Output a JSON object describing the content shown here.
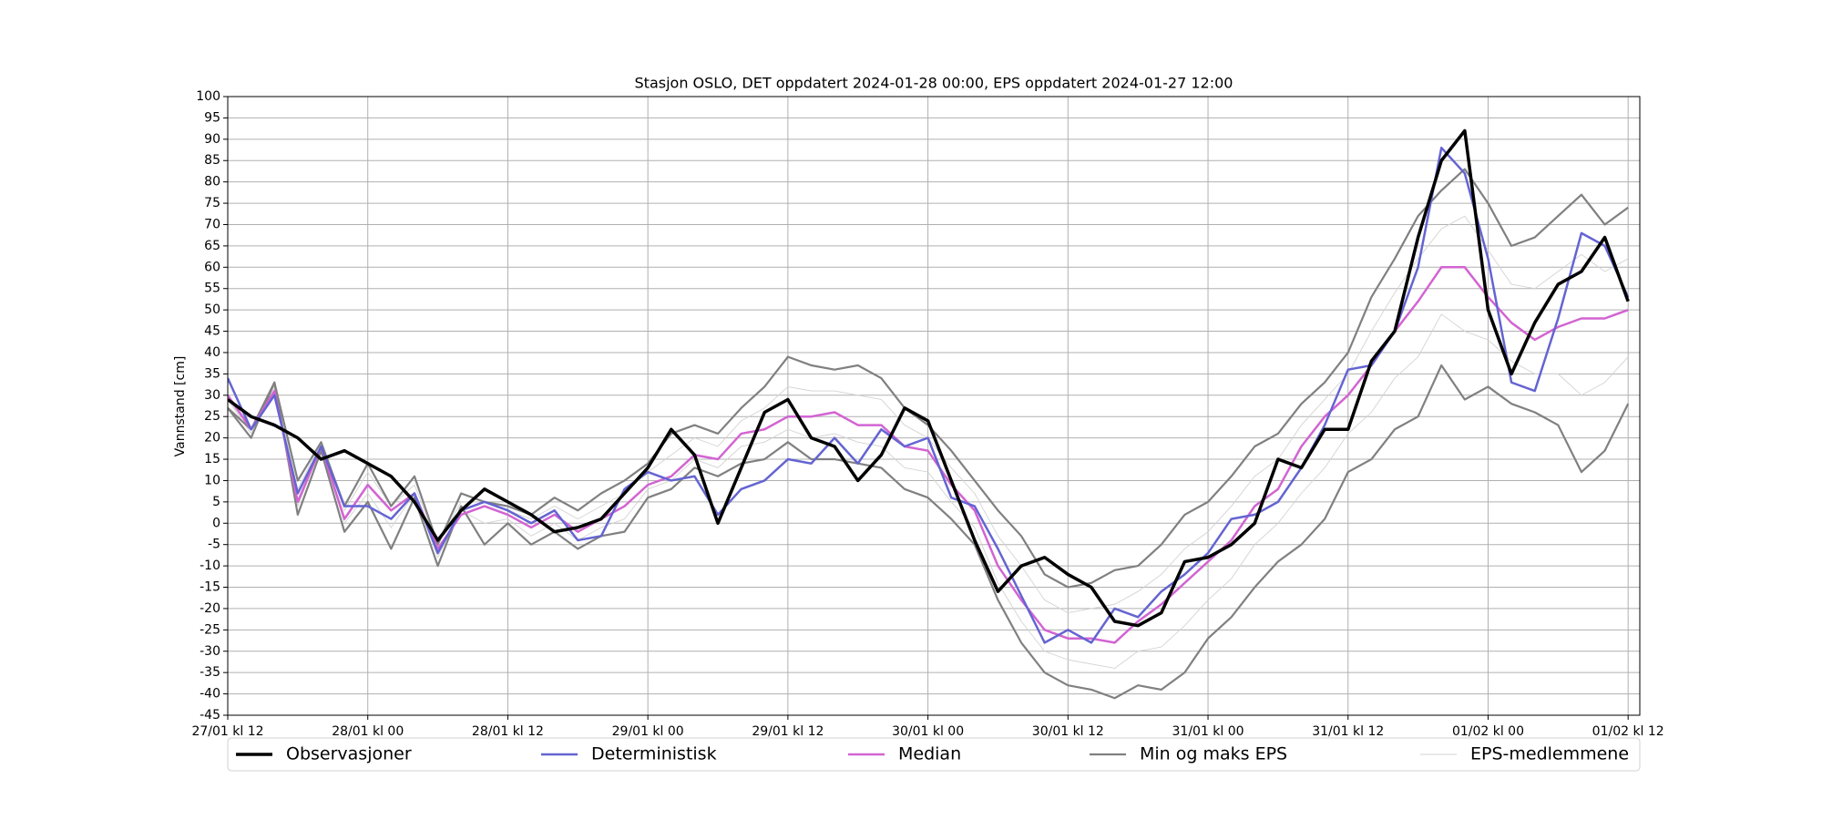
{
  "chart_data": {
    "type": "line",
    "title": "Stasjon OSLO, DET oppdatert 2024-01-28 00:00, EPS oppdatert 2024-01-27 12:00",
    "y_label": "Vannstand [cm]",
    "x": [
      0,
      2,
      4,
      6,
      8,
      10,
      12,
      14,
      16,
      18,
      20,
      22,
      24,
      26,
      28,
      30,
      32,
      34,
      36,
      38,
      40,
      42,
      44,
      46,
      48,
      50,
      52,
      54,
      56,
      58,
      60,
      62,
      64,
      66,
      68,
      70,
      72,
      74,
      76,
      78,
      80,
      82,
      84,
      86,
      88,
      90,
      92,
      94,
      96,
      98,
      100,
      102,
      104,
      106,
      108,
      110,
      112,
      114,
      116,
      118,
      120
    ],
    "xlim": [
      0,
      121
    ],
    "xticks": [
      {
        "value": 0,
        "label": "27/01 kl 12"
      },
      {
        "value": 12,
        "label": "28/01 kl 00"
      },
      {
        "value": 24,
        "label": "28/01 kl 12"
      },
      {
        "value": 36,
        "label": "29/01 kl 00"
      },
      {
        "value": 48,
        "label": "29/01 kl 12"
      },
      {
        "value": 60,
        "label": "30/01 kl 00"
      },
      {
        "value": 72,
        "label": "30/01 kl 12"
      },
      {
        "value": 84,
        "label": "31/01 kl 00"
      },
      {
        "value": 96,
        "label": "31/01 kl 12"
      },
      {
        "value": 108,
        "label": "01/02 kl 00"
      },
      {
        "value": 120,
        "label": "01/02 kl 12"
      }
    ],
    "ylim": [
      -45,
      100
    ],
    "yticks": [
      -45,
      -40,
      -35,
      -30,
      -25,
      -20,
      -15,
      -10,
      -5,
      0,
      5,
      10,
      15,
      20,
      25,
      30,
      35,
      40,
      45,
      50,
      55,
      60,
      65,
      70,
      75,
      80,
      85,
      90,
      95,
      100
    ],
    "grid": true,
    "legend": "bottom",
    "series": [
      {
        "name": "Observasjoner",
        "color": "#000000",
        "width": 3.5,
        "values": [
          29,
          25,
          23,
          20,
          15,
          17,
          14,
          11,
          5,
          -4,
          3,
          8,
          5,
          2,
          -2,
          -1,
          1,
          7,
          13,
          22,
          16,
          0,
          13,
          26,
          29,
          20,
          18,
          10,
          16,
          27,
          24,
          10,
          -4,
          -16,
          -10,
          -8,
          -12,
          -15,
          -23,
          -24,
          -21,
          -9,
          -8,
          -5,
          0,
          15,
          13,
          22,
          22,
          38,
          45,
          67,
          85,
          92,
          50,
          35,
          47,
          56,
          59,
          67,
          52
        ]
      },
      {
        "name": "Deterministisk",
        "color": "#6464d2",
        "width": 2.5,
        "values": [
          34,
          22,
          30,
          7,
          18,
          4,
          4,
          1,
          7,
          -7,
          3,
          5,
          3,
          0,
          3,
          -4,
          -3,
          8,
          12,
          10,
          11,
          2,
          8,
          10,
          15,
          14,
          20,
          14,
          22,
          18,
          20,
          6,
          4,
          -6,
          -17,
          -28,
          -25,
          -28,
          -20,
          -22,
          -16,
          -12,
          -7,
          1,
          2,
          5,
          13,
          23,
          36,
          37,
          45,
          60,
          88,
          82,
          62,
          33,
          31,
          48,
          68,
          65,
          53
        ]
      },
      {
        "name": "Median",
        "color": "#d264d2",
        "width": 2.5,
        "values": [
          30,
          22,
          31,
          5,
          18,
          1,
          9,
          3,
          7,
          -6,
          2,
          4,
          2,
          -1,
          2,
          -2,
          1,
          4,
          9,
          11,
          16,
          15,
          21,
          22,
          25,
          25,
          26,
          23,
          23,
          18,
          17,
          9,
          3,
          -10,
          -18,
          -25,
          -27,
          -27,
          -28,
          -23,
          -19,
          -14,
          -9,
          -4,
          4,
          8,
          18,
          25,
          30,
          37,
          45,
          52,
          60,
          60,
          53,
          47,
          43,
          46,
          48,
          48,
          50
        ]
      },
      {
        "name": "Min og maks EPS",
        "color": "#808080",
        "width": 2.2,
        "lower": [
          27,
          20,
          33,
          2,
          17,
          -2,
          5,
          -6,
          6,
          -10,
          4,
          -5,
          0,
          -5,
          -2,
          -6,
          -3,
          -2,
          6,
          8,
          13,
          11,
          14,
          15,
          19,
          15,
          15,
          14,
          13,
          8,
          6,
          1,
          -5,
          -18,
          -28,
          -35,
          -38,
          -39,
          -41,
          -38,
          -39,
          -35,
          -27,
          -22,
          -15,
          -9,
          -5,
          1,
          12,
          15,
          22,
          25,
          37,
          29,
          32,
          28,
          26,
          23,
          12,
          17,
          28
        ],
        "upper": [
          27,
          22,
          33,
          10,
          19,
          4,
          14,
          4,
          11,
          -5,
          7,
          5,
          4,
          2,
          6,
          3,
          7,
          10,
          14,
          21,
          23,
          21,
          27,
          32,
          39,
          37,
          36,
          37,
          34,
          27,
          23,
          17,
          10,
          3,
          -3,
          -12,
          -15,
          -14,
          -11,
          -10,
          -5,
          2,
          5,
          11,
          18,
          21,
          28,
          33,
          40,
          53,
          62,
          72,
          78,
          83,
          75,
          65,
          67,
          72,
          77,
          70,
          74
        ]
      },
      {
        "name": "EPS-medlemmene",
        "color": "#d3d3d3",
        "width": 0.9,
        "members": [
          [
            29,
            22,
            32,
            8,
            19,
            3,
            12,
            4,
            9,
            -5,
            5,
            5,
            3,
            1,
            4,
            1,
            4,
            7,
            12,
            16,
            20,
            18,
            24,
            27,
            32,
            31,
            31,
            30,
            29,
            23,
            20,
            13,
            7,
            -3,
            -10,
            -18,
            -21,
            -20,
            -19,
            -16,
            -12,
            -6,
            -2,
            4,
            11,
            15,
            23,
            29,
            35,
            45,
            54,
            62,
            69,
            72,
            64,
            56,
            55,
            59,
            63,
            59,
            62
          ],
          [
            29,
            21,
            32,
            4,
            18,
            0,
            7,
            -1,
            7,
            -8,
            3,
            0,
            1,
            -3,
            0,
            -4,
            -1,
            1,
            8,
            10,
            15,
            13,
            18,
            19,
            22,
            20,
            21,
            19,
            18,
            13,
            12,
            5,
            -1,
            -14,
            -23,
            -30,
            -32,
            -33,
            -34,
            -30,
            -29,
            -24,
            -18,
            -13,
            -5,
            0,
            7,
            13,
            21,
            26,
            34,
            39,
            49,
            45,
            43,
            38,
            35,
            35,
            30,
            33,
            39
          ]
        ]
      }
    ]
  }
}
